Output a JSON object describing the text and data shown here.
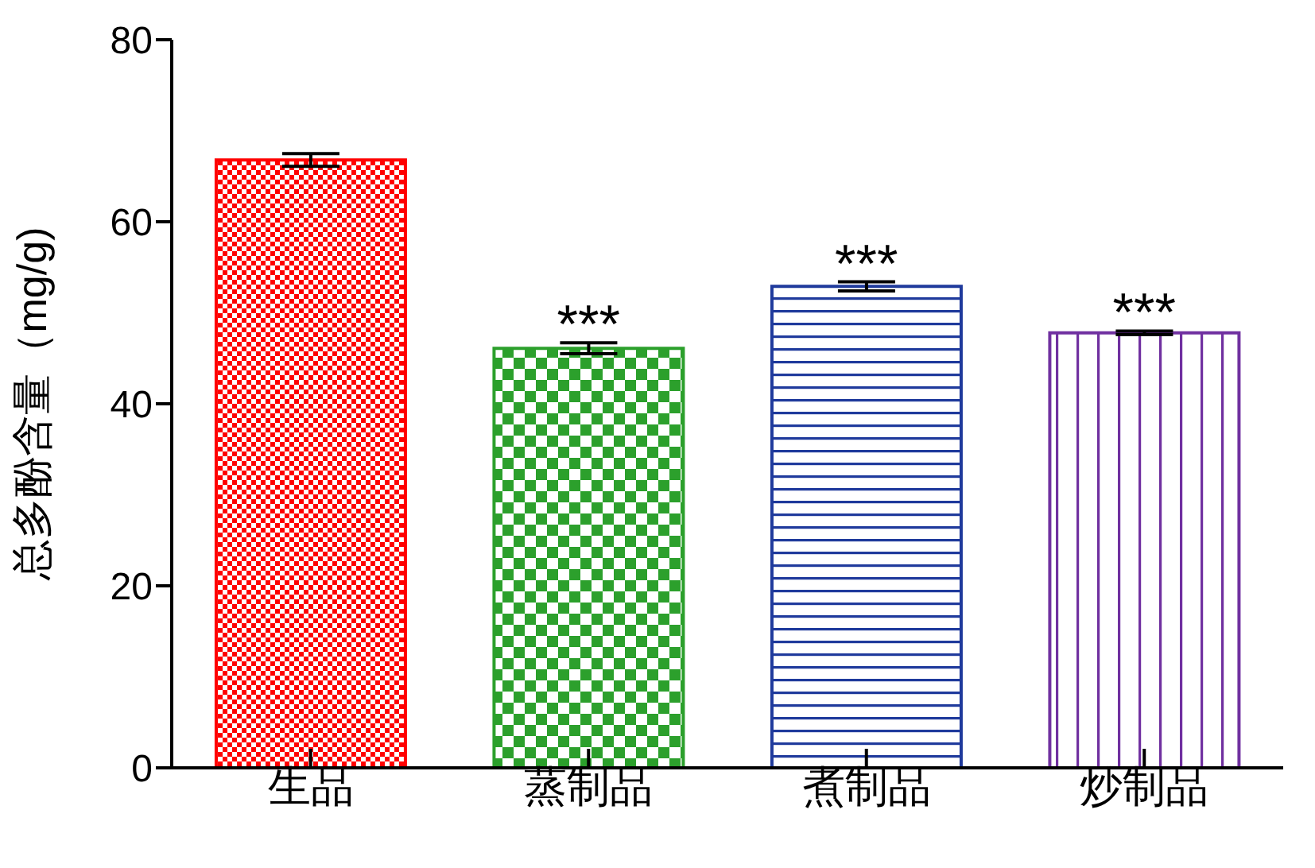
{
  "chart_data": {
    "type": "bar",
    "ylabel": "总多酚含量（mg/g)",
    "categories": [
      "生品",
      "蒸制品",
      "煮制品",
      "炒制品"
    ],
    "values": [
      66.8,
      46.1,
      52.9,
      47.8
    ],
    "errors": [
      0.7,
      0.6,
      0.5,
      0.2
    ],
    "colors": [
      "#ff0000",
      "#2ca02c",
      "#1f3a9c",
      "#7030a0"
    ],
    "ylim": [
      0,
      80
    ],
    "yticks": [
      0,
      20,
      40,
      60,
      80
    ],
    "grid": false,
    "legend": false,
    "annotations": [
      {
        "text": "***",
        "x": "蒸制品",
        "y": 46.7
      },
      {
        "text": "***",
        "x": "煮制品",
        "y": 53.4
      },
      {
        "text": "***",
        "x": "炒制品",
        "y": 48.0
      }
    ]
  }
}
